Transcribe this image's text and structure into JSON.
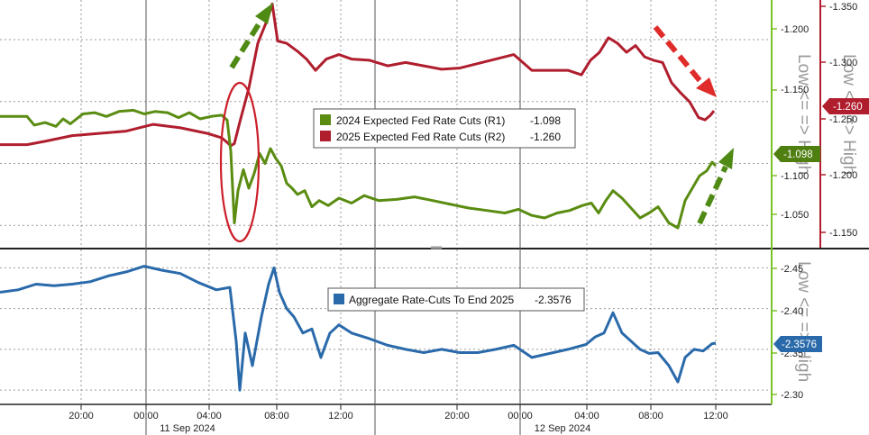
{
  "chart_data": [
    {
      "type": "line",
      "panel": "top",
      "grid": true,
      "legend_position": "center",
      "y_left_ticks": [
        "-1.200",
        "-1.150",
        "-1.100",
        "-1.050"
      ],
      "y_right_ticks": [
        "-1.350",
        "-1.300",
        "-1.250",
        "-1.200",
        "-1.150"
      ],
      "ylim_left": [
        -1.032,
        -1.232
      ],
      "ylim_right": [
        -1.1385,
        -1.3585
      ],
      "side_label_left": "Low <= => High",
      "side_label_right": "Low <= => High",
      "series": [
        {
          "name": "2024 Expected Fed Rate Cuts (R1)",
          "legend": "2024 Expected Fed Rate Cuts (R1)",
          "last": "-1.098",
          "axis": "left",
          "color": "#5a8c12",
          "points": [
            [
              0,
              -1.138
            ],
            [
              30,
              -1.138
            ],
            [
              38,
              -1.131
            ],
            [
              50,
              -1.133
            ],
            [
              62,
              -1.13
            ],
            [
              70,
              -1.136
            ],
            [
              78,
              -1.132
            ],
            [
              92,
              -1.14
            ],
            [
              105,
              -1.141
            ],
            [
              118,
              -1.138
            ],
            [
              132,
              -1.142
            ],
            [
              148,
              -1.143
            ],
            [
              160,
              -1.14
            ],
            [
              172,
              -1.142
            ],
            [
              186,
              -1.141
            ],
            [
              198,
              -1.137
            ],
            [
              210,
              -1.141
            ],
            [
              222,
              -1.136
            ],
            [
              234,
              -1.138
            ],
            [
              246,
              -1.139
            ],
            [
              252,
              -1.135
            ],
            [
              256,
              -1.11
            ],
            [
              260,
              -1.052
            ],
            [
              264,
              -1.078
            ],
            [
              270,
              -1.095
            ],
            [
              276,
              -1.08
            ],
            [
              282,
              -1.092
            ],
            [
              288,
              -1.108
            ],
            [
              294,
              -1.1
            ],
            [
              300,
              -1.112
            ],
            [
              306,
              -1.104
            ],
            [
              312,
              -1.098
            ],
            [
              318,
              -1.084
            ],
            [
              324,
              -1.08
            ],
            [
              330,
              -1.075
            ],
            [
              338,
              -1.078
            ],
            [
              346,
              -1.065
            ],
            [
              354,
              -1.07
            ],
            [
              364,
              -1.066
            ],
            [
              376,
              -1.072
            ],
            [
              390,
              -1.068
            ],
            [
              404,
              -1.074
            ],
            [
              420,
              -1.07
            ],
            [
              440,
              -1.071
            ],
            [
              460,
              -1.073
            ],
            [
              480,
              -1.07
            ],
            [
              500,
              -1.067
            ],
            [
              520,
              -1.064
            ],
            [
              540,
              -1.062
            ],
            [
              560,
              -1.06
            ],
            [
              575,
              -1.063
            ],
            [
              590,
              -1.058
            ],
            [
              604,
              -1.056
            ],
            [
              618,
              -1.06
            ],
            [
              632,
              -1.062
            ],
            [
              646,
              -1.066
            ],
            [
              656,
              -1.068
            ],
            [
              664,
              -1.06
            ],
            [
              672,
              -1.07
            ],
            [
              680,
              -1.078
            ],
            [
              690,
              -1.072
            ],
            [
              700,
              -1.064
            ],
            [
              710,
              -1.056
            ],
            [
              720,
              -1.06
            ],
            [
              730,
              -1.065
            ],
            [
              742,
              -1.052
            ],
            [
              752,
              -1.048
            ],
            [
              760,
              -1.07
            ],
            [
              768,
              -1.08
            ],
            [
              776,
              -1.09
            ],
            [
              784,
              -1.094
            ],
            [
              790,
              -1.101
            ],
            [
              794,
              -1.098
            ]
          ]
        },
        {
          "name": "2025 Expected Fed Rate Cuts (R2)",
          "legend": "2025 Expected Fed Rate Cuts (R2)",
          "last": "-1.260",
          "axis": "right",
          "color": "#b01e2e",
          "points": [
            [
              0,
              -1.23
            ],
            [
              30,
              -1.23
            ],
            [
              50,
              -1.233
            ],
            [
              80,
              -1.238
            ],
            [
              110,
              -1.24
            ],
            [
              140,
              -1.242
            ],
            [
              170,
              -1.248
            ],
            [
              200,
              -1.245
            ],
            [
              230,
              -1.24
            ],
            [
              246,
              -1.236
            ],
            [
              252,
              -1.232
            ],
            [
              256,
              -1.229
            ],
            [
              260,
              -1.231
            ],
            [
              266,
              -1.25
            ],
            [
              276,
              -1.28
            ],
            [
              286,
              -1.32
            ],
            [
              296,
              -1.34
            ],
            [
              302,
              -1.355
            ],
            [
              308,
              -1.322
            ],
            [
              318,
              -1.32
            ],
            [
              330,
              -1.313
            ],
            [
              340,
              -1.306
            ],
            [
              350,
              -1.296
            ],
            [
              362,
              -1.306
            ],
            [
              376,
              -1.31
            ],
            [
              390,
              -1.306
            ],
            [
              410,
              -1.305
            ],
            [
              430,
              -1.3
            ],
            [
              450,
              -1.303
            ],
            [
              470,
              -1.3
            ],
            [
              490,
              -1.297
            ],
            [
              510,
              -1.298
            ],
            [
              530,
              -1.302
            ],
            [
              550,
              -1.306
            ],
            [
              570,
              -1.31
            ],
            [
              590,
              -1.296
            ],
            [
              610,
              -1.296
            ],
            [
              630,
              -1.296
            ],
            [
              645,
              -1.292
            ],
            [
              655,
              -1.305
            ],
            [
              665,
              -1.312
            ],
            [
              675,
              -1.325
            ],
            [
              685,
              -1.32
            ],
            [
              695,
              -1.312
            ],
            [
              705,
              -1.318
            ],
            [
              715,
              -1.308
            ],
            [
              725,
              -1.305
            ],
            [
              735,
              -1.303
            ],
            [
              745,
              -1.285
            ],
            [
              755,
              -1.276
            ],
            [
              765,
              -1.268
            ],
            [
              775,
              -1.254
            ],
            [
              782,
              -1.252
            ],
            [
              788,
              -1.256
            ],
            [
              792,
              -1.26
            ]
          ]
        }
      ]
    },
    {
      "type": "line",
      "panel": "bottom",
      "grid": true,
      "legend_position": "center",
      "y_right_ticks": [
        "-2.45",
        "-2.40",
        "-2.35",
        "-2.30"
      ],
      "ylim_right": [
        -2.2825,
        -2.4725
      ],
      "side_label_right": "Low <= => High",
      "series": [
        {
          "name": "Aggregate Rate-Cuts To End 2025",
          "legend": "Aggregate Rate-Cuts To End 2025",
          "last": "-2.3576",
          "axis": "right",
          "color": "#2a6aaa",
          "points": [
            [
              0,
              -2.42
            ],
            [
              20,
              -2.423
            ],
            [
              40,
              -2.43
            ],
            [
              60,
              -2.428
            ],
            [
              80,
              -2.43
            ],
            [
              100,
              -2.433
            ],
            [
              120,
              -2.44
            ],
            [
              140,
              -2.445
            ],
            [
              160,
              -2.452
            ],
            [
              180,
              -2.447
            ],
            [
              200,
              -2.443
            ],
            [
              220,
              -2.432
            ],
            [
              240,
              -2.423
            ],
            [
              255,
              -2.426
            ],
            [
              262,
              -2.36
            ],
            [
              266,
              -2.3
            ],
            [
              272,
              -2.37
            ],
            [
              280,
              -2.33
            ],
            [
              290,
              -2.39
            ],
            [
              298,
              -2.43
            ],
            [
              304,
              -2.45
            ],
            [
              310,
              -2.42
            ],
            [
              318,
              -2.4
            ],
            [
              326,
              -2.39
            ],
            [
              336,
              -2.37
            ],
            [
              346,
              -2.375
            ],
            [
              356,
              -2.34
            ],
            [
              366,
              -2.37
            ],
            [
              376,
              -2.38
            ],
            [
              390,
              -2.37
            ],
            [
              410,
              -2.363
            ],
            [
              430,
              -2.355
            ],
            [
              450,
              -2.35
            ],
            [
              470,
              -2.346
            ],
            [
              490,
              -2.35
            ],
            [
              510,
              -2.346
            ],
            [
              530,
              -2.346
            ],
            [
              550,
              -2.35
            ],
            [
              570,
              -2.355
            ],
            [
              590,
              -2.34
            ],
            [
              610,
              -2.345
            ],
            [
              630,
              -2.35
            ],
            [
              650,
              -2.356
            ],
            [
              660,
              -2.365
            ],
            [
              670,
              -2.37
            ],
            [
              680,
              -2.395
            ],
            [
              690,
              -2.37
            ],
            [
              700,
              -2.36
            ],
            [
              710,
              -2.35
            ],
            [
              720,
              -2.345
            ],
            [
              730,
              -2.346
            ],
            [
              742,
              -2.33
            ],
            [
              752,
              -2.31
            ],
            [
              760,
              -2.34
            ],
            [
              770,
              -2.35
            ],
            [
              780,
              -2.348
            ],
            [
              790,
              -2.357
            ],
            [
              794,
              -2.3576
            ]
          ]
        }
      ]
    }
  ],
  "x_axis": {
    "ticks": [
      {
        "t": 90,
        "label": "20:00"
      },
      {
        "t": 162,
        "label": "00:00"
      },
      {
        "t": 232,
        "label": "04:00"
      },
      {
        "t": 307,
        "label": "08:00"
      },
      {
        "t": 378,
        "label": "12:00"
      },
      {
        "t": 507,
        "label": "20:00"
      },
      {
        "t": 577,
        "label": "00:00"
      },
      {
        "t": 651,
        "label": "04:00"
      },
      {
        "t": 722,
        "label": "08:00"
      },
      {
        "t": 794,
        "label": "12:00"
      }
    ],
    "date_labels": [
      {
        "t": 208,
        "label": "11 Sep 2024"
      },
      {
        "t": 624,
        "label": "12 Sep 2024"
      }
    ],
    "day_separators": [
      162,
      416,
      577
    ]
  },
  "colors": {
    "green": "#5a8c12",
    "red": "#b01e2e",
    "blue": "#2a6aaa",
    "green_arrow": "#4f8a14",
    "red_arrow": "#e02b2b",
    "ellipse": "#cc1f2a",
    "grid": "#9a9a9a",
    "left_axis_green": "#7ac12a"
  }
}
